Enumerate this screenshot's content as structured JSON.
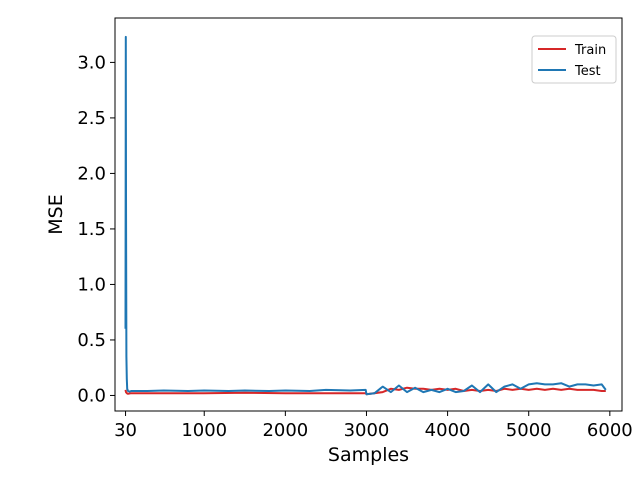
{
  "chart_data": {
    "type": "line",
    "title": "",
    "xlabel": "Samples",
    "ylabel": "MSE",
    "xlim": [
      -100,
      6150
    ],
    "ylim": [
      -0.14,
      3.4
    ],
    "x_ticks": [
      30,
      1000,
      2000,
      3000,
      4000,
      5000,
      6000
    ],
    "x_tick_labels": [
      "30",
      "1000",
      "2000",
      "3000",
      "4000",
      "5000",
      "6000"
    ],
    "y_ticks": [
      0.0,
      0.5,
      1.0,
      1.5,
      2.0,
      2.5,
      3.0
    ],
    "y_tick_labels": [
      "0.0",
      "0.5",
      "1.0",
      "1.5",
      "2.0",
      "2.5",
      "3.0"
    ],
    "grid": false,
    "legend_position": "top-right",
    "series": [
      {
        "name": "Train",
        "color": "#d62728",
        "x": [
          30,
          35,
          45,
          60,
          100,
          500,
          1000,
          1500,
          2000,
          2500,
          2990,
          3000,
          3200,
          3300,
          3400,
          3500,
          3600,
          3700,
          3800,
          3900,
          4000,
          4100,
          4200,
          4300,
          4400,
          4500,
          4600,
          4700,
          4800,
          4900,
          5000,
          5100,
          5200,
          5300,
          5400,
          5500,
          5600,
          5700,
          5800,
          5900,
          5950
        ],
        "y": [
          0.05,
          0.03,
          0.02,
          0.015,
          0.02,
          0.02,
          0.02,
          0.025,
          0.02,
          0.02,
          0.02,
          0.01,
          0.03,
          0.06,
          0.05,
          0.07,
          0.06,
          0.06,
          0.05,
          0.06,
          0.05,
          0.06,
          0.04,
          0.05,
          0.04,
          0.05,
          0.04,
          0.06,
          0.05,
          0.06,
          0.05,
          0.06,
          0.05,
          0.06,
          0.05,
          0.06,
          0.05,
          0.05,
          0.05,
          0.04,
          0.04
        ]
      },
      {
        "name": "Test",
        "color": "#1f77b4",
        "x": [
          30,
          33,
          36,
          40,
          45,
          50,
          60,
          80,
          100,
          300,
          500,
          800,
          1000,
          1300,
          1500,
          1800,
          2000,
          2300,
          2500,
          2800,
          2990,
          3000,
          3100,
          3200,
          3300,
          3400,
          3500,
          3600,
          3700,
          3800,
          3900,
          4000,
          4100,
          4200,
          4300,
          4400,
          4500,
          4600,
          4700,
          4800,
          4900,
          5000,
          5100,
          5200,
          5300,
          5400,
          5500,
          5600,
          5700,
          5800,
          5900,
          5950
        ],
        "y": [
          0.6,
          3.23,
          1.8,
          0.35,
          0.15,
          0.06,
          0.04,
          0.035,
          0.04,
          0.04,
          0.045,
          0.04,
          0.045,
          0.04,
          0.045,
          0.04,
          0.045,
          0.04,
          0.05,
          0.045,
          0.05,
          0.01,
          0.02,
          0.08,
          0.03,
          0.09,
          0.03,
          0.07,
          0.03,
          0.05,
          0.03,
          0.06,
          0.03,
          0.04,
          0.09,
          0.03,
          0.1,
          0.03,
          0.08,
          0.1,
          0.06,
          0.1,
          0.11,
          0.1,
          0.1,
          0.11,
          0.08,
          0.1,
          0.1,
          0.09,
          0.1,
          0.05
        ]
      }
    ]
  }
}
